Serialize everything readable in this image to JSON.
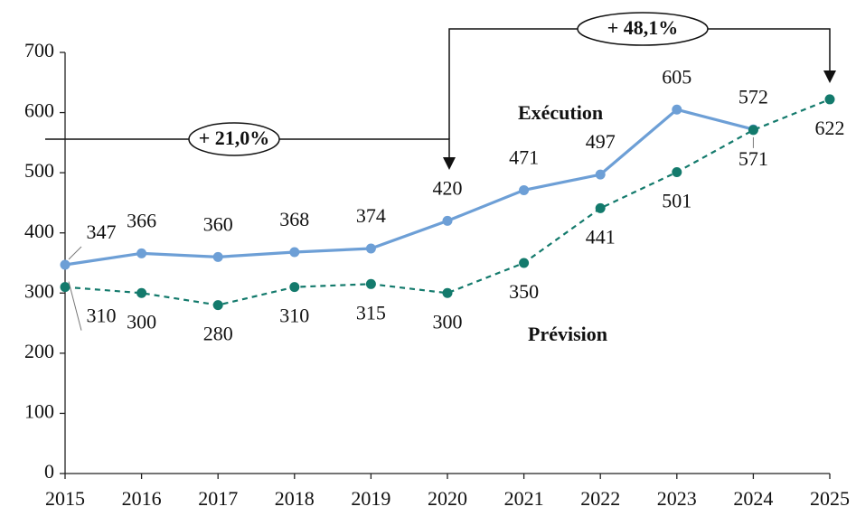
{
  "chart_data": {
    "type": "line",
    "categories": [
      "2015",
      "2016",
      "2017",
      "2018",
      "2019",
      "2020",
      "2021",
      "2022",
      "2023",
      "2024",
      "2025"
    ],
    "series": [
      {
        "name": "Exécution",
        "color": "#6d9fd6",
        "dashed": false,
        "values": [
          347,
          366,
          360,
          368,
          374,
          420,
          471,
          497,
          605,
          572,
          null
        ]
      },
      {
        "name": "Prévision",
        "color": "#137a6c",
        "dashed": true,
        "values": [
          310,
          300,
          280,
          310,
          315,
          300,
          350,
          441,
          501,
          571,
          622
        ]
      }
    ],
    "ylim": [
      0,
      700
    ],
    "yticks": [
      0,
      100,
      200,
      300,
      400,
      500,
      600,
      700
    ],
    "grid": false,
    "annotations": [
      {
        "text": "+ 21,0%"
      },
      {
        "text": "+ 48,1%"
      }
    ]
  }
}
